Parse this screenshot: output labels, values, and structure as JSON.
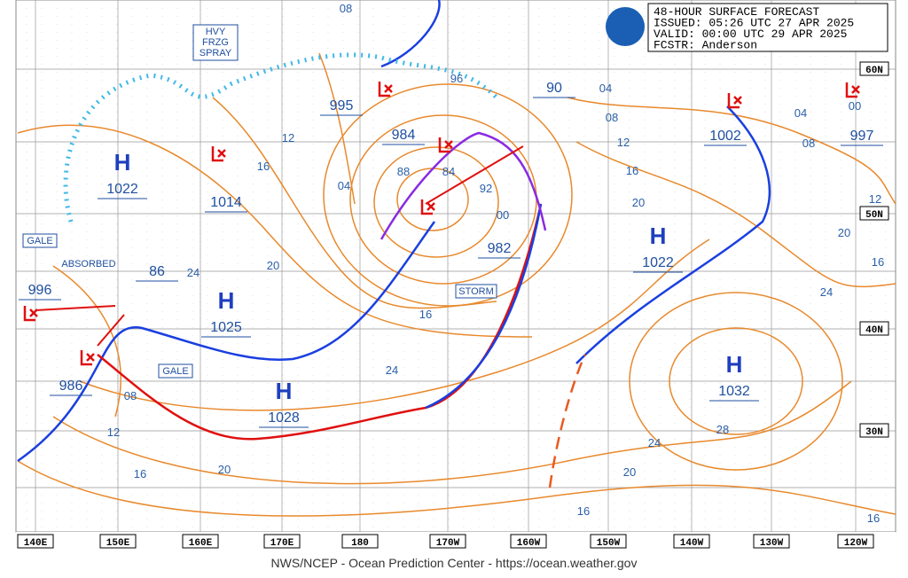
{
  "header": {
    "lines": [
      "48-HOUR SURFACE FORECAST",
      "ISSUED:  05:26 UTC 27 APR 2025",
      "VALID:   00:00 UTC 29 APR 2025",
      "FCSTR:   Anderson"
    ]
  },
  "footer": "NWS/NCEP - Ocean Prediction Center - https://ocean.weather.gov",
  "longitudes": [
    "140E",
    "150E",
    "160E",
    "170E",
    "180",
    "170W",
    "160W",
    "150W",
    "140W",
    "130W",
    "120W"
  ],
  "latitudes": [
    "60N",
    "50N",
    "40N",
    "30N"
  ],
  "highs": [
    {
      "letter": "H",
      "pressure": "1022"
    },
    {
      "letter": "H",
      "pressure": "1025"
    },
    {
      "letter": "H",
      "pressure": "1028"
    },
    {
      "letter": "H",
      "pressure": "1022"
    },
    {
      "letter": "H",
      "pressure": "1032"
    }
  ],
  "low_pressures": [
    "995",
    "984",
    "982",
    "996",
    "986",
    "1002",
    "997",
    "90",
    "86",
    "1014"
  ],
  "isobar_labels": [
    "08",
    "96",
    "04",
    "08",
    "12",
    "16",
    "20",
    "12",
    "16",
    "04",
    "20",
    "24",
    "88",
    "84",
    "92",
    "00",
    "16",
    "24",
    "08",
    "12",
    "16",
    "20",
    "24",
    "20",
    "16",
    "28",
    "24",
    "20",
    "16",
    "12",
    "04",
    "08",
    "00",
    "16"
  ],
  "annotations": {
    "spray": [
      "HVY",
      "FRZG",
      "SPRAY"
    ],
    "gale_west": "GALE",
    "absorbed": "ABSORBED",
    "storm": "STORM",
    "gale_south": "GALE"
  }
}
